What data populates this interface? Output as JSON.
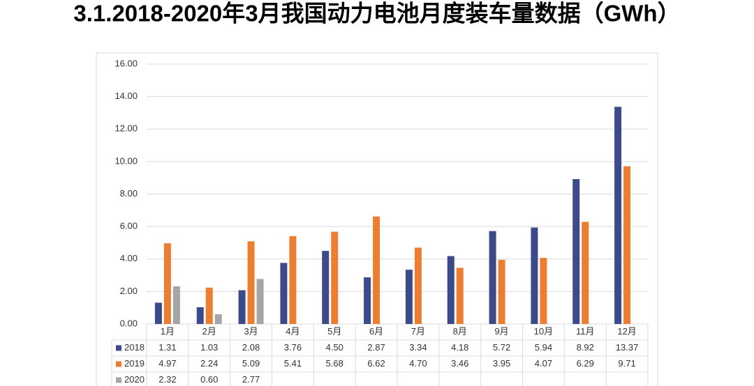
{
  "chart_data": {
    "type": "bar",
    "title": "3.1.2018-2020年3月我国动力电池月度装车量数据（GWh）",
    "categories": [
      "1月",
      "2月",
      "3月",
      "4月",
      "5月",
      "6月",
      "7月",
      "8月",
      "9月",
      "10月",
      "11月",
      "12月"
    ],
    "series": [
      {
        "name": "2018",
        "color": "#3c4a8a",
        "values": [
          1.31,
          1.03,
          2.08,
          3.76,
          4.5,
          2.87,
          3.34,
          4.18,
          5.72,
          5.94,
          8.92,
          13.37
        ],
        "value_labels": [
          "1.31",
          "1.03",
          "2.08",
          "3.76",
          "4.50",
          "2.87",
          "3.34",
          "4.18",
          "5.72",
          "5.94",
          "8.92",
          "13.37"
        ]
      },
      {
        "name": "2019",
        "color": "#ed7d31",
        "values": [
          4.97,
          2.24,
          5.09,
          5.41,
          5.68,
          6.62,
          4.7,
          3.46,
          3.95,
          4.07,
          6.29,
          9.71
        ],
        "value_labels": [
          "4.97",
          "2.24",
          "5.09",
          "5.41",
          "5.68",
          "6.62",
          "4.70",
          "3.46",
          "3.95",
          "4.07",
          "6.29",
          "9.71"
        ]
      },
      {
        "name": "2020",
        "color": "#a5a5a5",
        "values": [
          2.32,
          0.6,
          2.77,
          null,
          null,
          null,
          null,
          null,
          null,
          null,
          null,
          null
        ],
        "value_labels": [
          "2.32",
          "0.60",
          "2.77",
          null,
          null,
          null,
          null,
          null,
          null,
          null,
          null,
          null
        ]
      }
    ],
    "ylim": [
      0,
      16
    ],
    "yticks": [
      {
        "value": 0,
        "label": "0.00"
      },
      {
        "value": 2,
        "label": "2.00"
      },
      {
        "value": 4,
        "label": "4.00"
      },
      {
        "value": 6,
        "label": "6.00"
      },
      {
        "value": 8,
        "label": "8.00"
      },
      {
        "value": 10,
        "label": "10.00"
      },
      {
        "value": 12,
        "label": "12.00"
      },
      {
        "value": 14,
        "label": "14.00"
      },
      {
        "value": 16,
        "label": "16.00"
      }
    ],
    "grid": true
  }
}
